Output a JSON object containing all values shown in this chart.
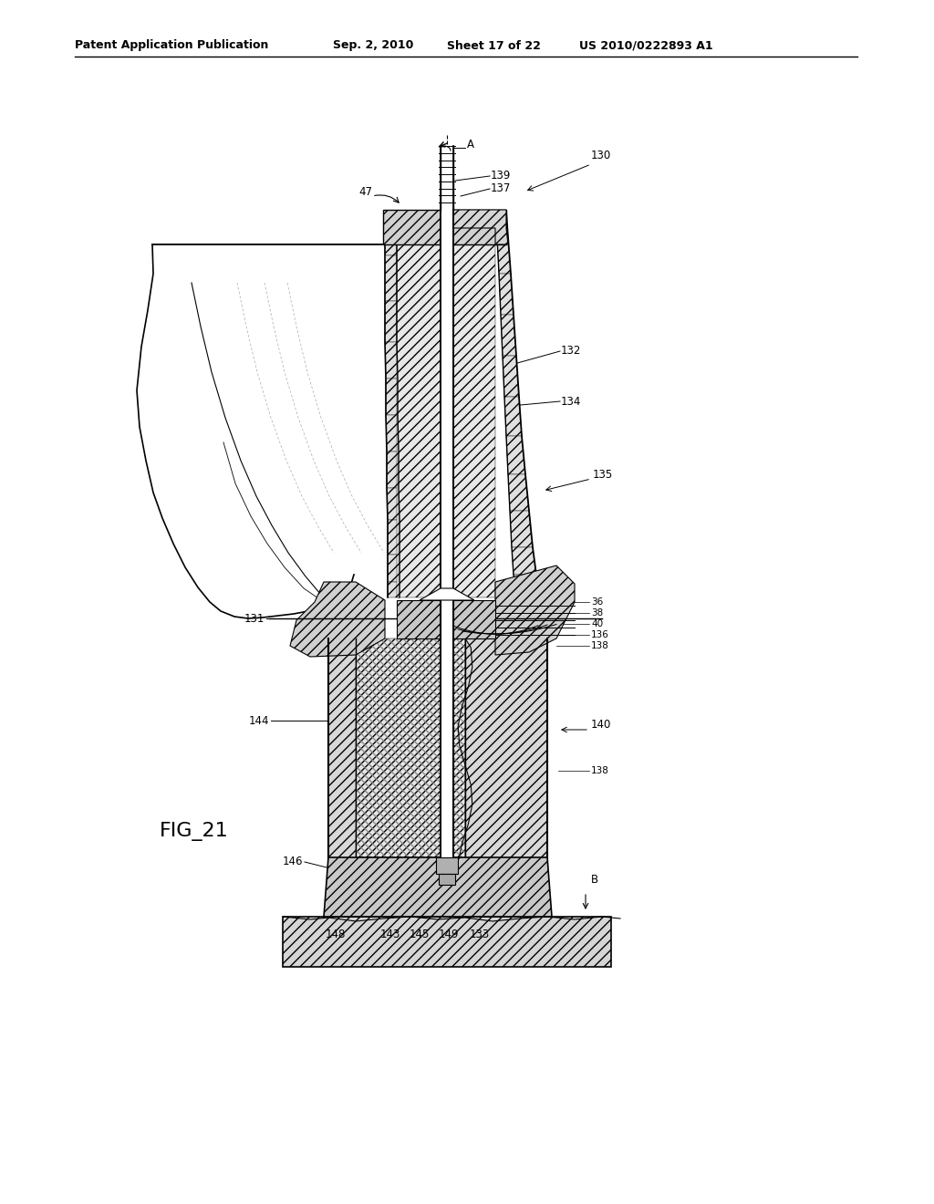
{
  "bg_color": "#ffffff",
  "line_color": "#000000",
  "header_text": "Patent Application Publication",
  "header_date": "Sep. 2, 2010",
  "header_sheet": "Sheet 17 of 22",
  "header_patent": "US 2010/0222893 A1",
  "fig_label": "FIG_21"
}
